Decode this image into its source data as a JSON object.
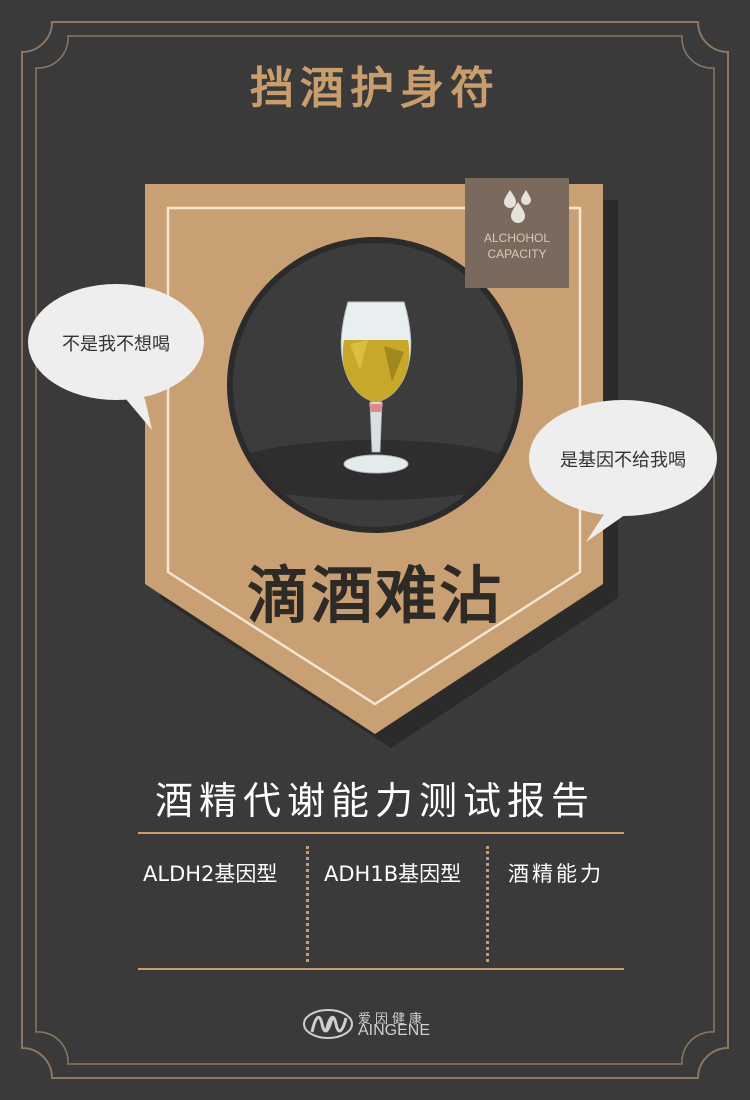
{
  "header": {
    "title": "挡酒护身符"
  },
  "badge": {
    "line1": "ALCHOHOL",
    "line2": "CAPACITY",
    "icon": "water-drops-icon"
  },
  "bubbles": {
    "left": "不是我不想喝",
    "right": "是基因不给我喝"
  },
  "brand_phrase": "滴酒难沾",
  "report": {
    "title": "酒精代谢能力测试报告",
    "columns": [
      "ALDH2基因型",
      "ADH1B基因型",
      "酒精能力"
    ]
  },
  "logo": {
    "cn": "爱因健康",
    "en": "AINGENE",
    "icon": "aingene-logo-icon"
  },
  "colors": {
    "background": "#3a3a3a",
    "accent": "#c99d6c",
    "banner": "#c9a074",
    "frame": "#8e7660"
  }
}
